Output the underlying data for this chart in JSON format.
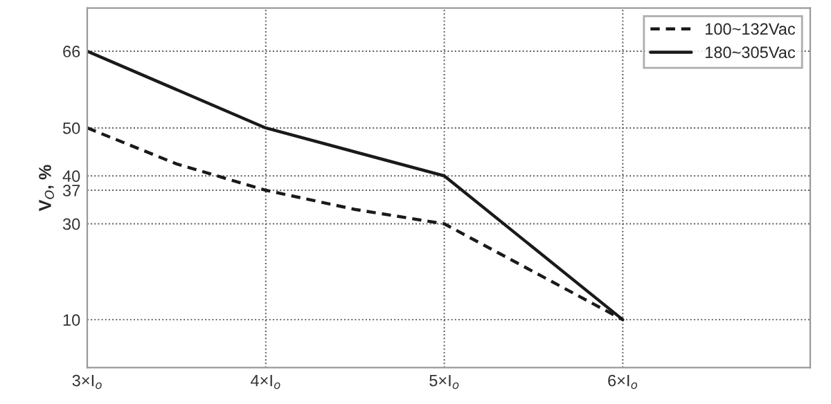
{
  "chart_data": {
    "type": "line",
    "ylabel": "V$_{O}$, %",
    "x": [
      3,
      4,
      5,
      6
    ],
    "series": [
      {
        "name": "100~132Vac",
        "color": "#1a1a1a",
        "line_style": "dashed",
        "x": [
          3,
          3.5,
          4,
          4.5,
          5,
          5.5,
          6
        ],
        "values": [
          50,
          42.5,
          37,
          33,
          30,
          20,
          10
        ]
      },
      {
        "name": "180~305Vac",
        "color": "#1a1a1a",
        "line_style": "solid",
        "values": [
          66,
          50,
          40,
          10
        ]
      }
    ],
    "xlim": [
      3,
      7.05
    ],
    "xticks": [
      {
        "value": 3,
        "label": "3×I$_{o}$"
      },
      {
        "value": 4,
        "label": "4×I$_{o}$"
      },
      {
        "value": 5,
        "label": "5×I$_{o}$"
      },
      {
        "value": 6,
        "label": "6×I$_{o}$"
      }
    ],
    "ylim": [
      0,
      75
    ],
    "yticks": [
      10,
      30,
      37,
      40,
      50,
      66
    ],
    "grid": true,
    "legend": "top right",
    "marker": "none"
  }
}
